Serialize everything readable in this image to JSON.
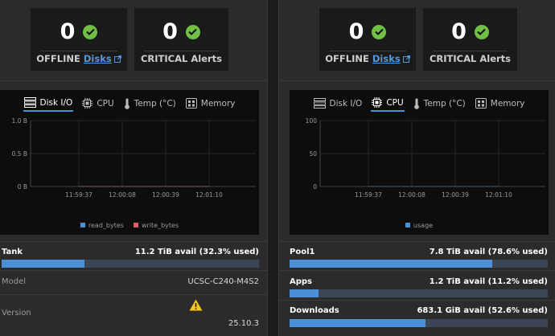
{
  "colors": {
    "accent": "#4a8fd8",
    "ok": "#71bf44",
    "warn": "#f5c518",
    "read_series": "#4a8fd8",
    "write_series": "#e05a6e"
  },
  "left": {
    "stats": [
      {
        "value": "0",
        "label_prefix": "OFFLINE",
        "label_link": "Disks",
        "icon": "check-circle-icon"
      },
      {
        "value": "0",
        "label_prefix": "CRITICAL Alerts",
        "label_link": "",
        "icon": "check-circle-icon"
      }
    ],
    "tabs": [
      {
        "label": "Disk I/O",
        "icon": "server-icon",
        "active": true
      },
      {
        "label": "CPU",
        "icon": "chip-icon",
        "active": false
      },
      {
        "label": "Temp (°C)",
        "icon": "thermometer-icon",
        "active": false
      },
      {
        "label": "Memory",
        "icon": "memory-icon",
        "active": false
      }
    ],
    "pool": {
      "name": "Tank",
      "avail": "11.2 TiB avail (32.3% used)",
      "used": 0.323
    },
    "details": [
      {
        "key": "Model",
        "value": "UCSC-C240-M4S2"
      },
      {
        "key": "Version",
        "value": "25.10.3",
        "warning_icon": "warning-icon"
      }
    ]
  },
  "right": {
    "stats": [
      {
        "value": "0",
        "label_prefix": "OFFLINE",
        "label_link": "Disks",
        "icon": "check-circle-icon"
      },
      {
        "value": "0",
        "label_prefix": "CRITICAL Alerts",
        "label_link": "",
        "icon": "check-circle-icon"
      }
    ],
    "tabs": [
      {
        "label": "Disk I/O",
        "icon": "server-icon",
        "active": false
      },
      {
        "label": "CPU",
        "icon": "chip-icon",
        "active": true
      },
      {
        "label": "Temp (°C)",
        "icon": "thermometer-icon",
        "active": false
      },
      {
        "label": "Memory",
        "icon": "memory-icon",
        "active": false
      }
    ],
    "pools": [
      {
        "name": "Pool1",
        "avail": "7.8 TiB avail (78.6% used)",
        "used": 0.786
      },
      {
        "name": "Apps",
        "avail": "1.2 TiB avail (11.2% used)",
        "used": 0.112
      },
      {
        "name": "Downloads",
        "avail": "683.1 GiB avail (52.6% used)",
        "used": 0.526
      }
    ]
  },
  "chart_data": [
    {
      "type": "line",
      "x": [
        "11:59:37",
        "12:00:08",
        "12:00:39",
        "12:01:10"
      ],
      "series": [
        {
          "name": "read_bytes",
          "values": [
            0,
            0,
            0,
            0
          ]
        },
        {
          "name": "write_bytes",
          "values": [
            0,
            0,
            0,
            0
          ]
        }
      ],
      "yticks": [
        "1.0 B",
        "0.5 B",
        "0 B"
      ],
      "ylim": [
        0,
        1
      ],
      "grid": true,
      "legend": "bottom-center"
    },
    {
      "type": "line",
      "x": [
        "11:59:37",
        "12:00:08",
        "12:00:39",
        "12:01:10"
      ],
      "series": [
        {
          "name": "usage",
          "values": [
            0,
            0,
            0,
            0
          ]
        }
      ],
      "yticks": [
        "100",
        "50",
        "0"
      ],
      "ylim": [
        0,
        100
      ],
      "grid": true,
      "legend": "bottom-center"
    }
  ]
}
